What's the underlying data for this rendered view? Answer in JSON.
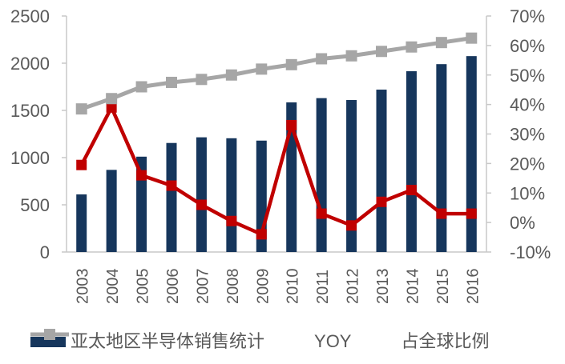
{
  "chart_data": {
    "type": "bar",
    "subtype": "combo-bar-line-dual-axis",
    "title": "",
    "categories": [
      "2003",
      "2004",
      "2005",
      "2006",
      "2007",
      "2008",
      "2009",
      "2010",
      "2011",
      "2012",
      "2013",
      "2014",
      "2015",
      "2016"
    ],
    "series": [
      {
        "name": "亚太地区半导体销售统计",
        "type": "bar",
        "axis": "left",
        "color": "#16365C",
        "values": [
          610,
          870,
          1010,
          1155,
          1215,
          1205,
          1180,
          1585,
          1630,
          1610,
          1720,
          1915,
          1990,
          2075
        ]
      },
      {
        "name": "YOY",
        "type": "line",
        "axis": "right",
        "marker": "square",
        "color": "#C00000",
        "values": [
          19.5,
          39,
          16,
          12.5,
          6,
          0.5,
          -4,
          33,
          3,
          -1,
          7,
          11,
          3,
          3
        ]
      },
      {
        "name": "占全球比例",
        "type": "line",
        "axis": "right",
        "marker": "square",
        "color": "#A6A6A6",
        "values": [
          38.5,
          42,
          46,
          47.5,
          48.5,
          50,
          52,
          53.5,
          55.5,
          56.5,
          58,
          59.5,
          61,
          62.5
        ]
      }
    ],
    "left_axis": {
      "min": 0,
      "max": 2500,
      "step": 500,
      "tick_labels": [
        "0",
        "500",
        "1000",
        "1500",
        "2000",
        "2500"
      ]
    },
    "right_axis": {
      "min": -10,
      "max": 70,
      "step": 10,
      "tick_labels": [
        "-10%",
        "0%",
        "10%",
        "20%",
        "30%",
        "40%",
        "50%",
        "60%",
        "70%"
      ]
    },
    "grid": false,
    "legend_position": "bottom",
    "axis_line_color": "#C9C9C9",
    "axis_text_color": "#595959"
  }
}
